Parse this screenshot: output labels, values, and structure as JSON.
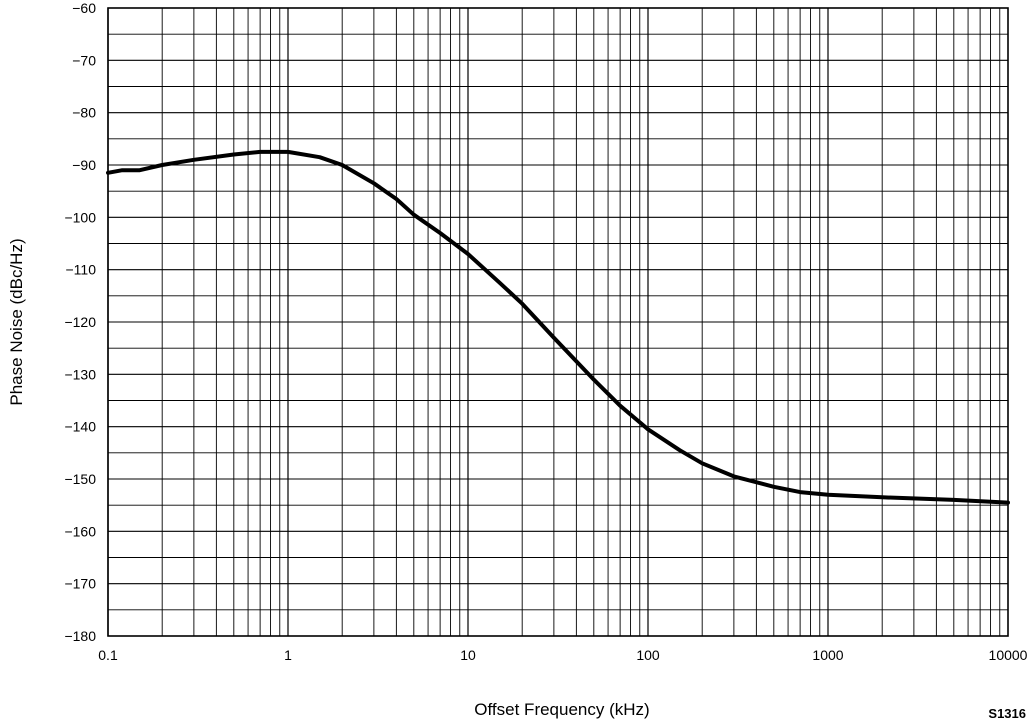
{
  "chart_data": {
    "type": "line",
    "title": "",
    "xlabel": "Offset Frequency (kHz)",
    "ylabel": "Phase Noise (dBc/Hz)",
    "x_scale": "log",
    "xlim": [
      0.1,
      10000
    ],
    "ylim": [
      -180,
      -60
    ],
    "x_ticks": [
      0.1,
      1,
      10,
      100,
      1000,
      10000
    ],
    "x_tick_labels": [
      "0.1",
      "1",
      "10",
      "100",
      "1000",
      "10000"
    ],
    "y_ticks": [
      -60,
      -70,
      -80,
      -90,
      -100,
      -110,
      -120,
      -130,
      -140,
      -150,
      -160,
      -170,
      -180
    ],
    "y_tick_labels": [
      "−60",
      "−70",
      "−80",
      "−90",
      "−100",
      "−110",
      "−120",
      "−130",
      "−140",
      "−150",
      "−160",
      "−170",
      "−180"
    ],
    "grid": true,
    "grid_minor_y_step": 5,
    "figure_id": "S1316",
    "series": [
      {
        "color": "#000000",
        "x": [
          0.1,
          0.12,
          0.15,
          0.2,
          0.3,
          0.5,
          0.7,
          1,
          1.5,
          2,
          3,
          4,
          5,
          7,
          10,
          15,
          20,
          30,
          50,
          70,
          100,
          150,
          200,
          300,
          500,
          700,
          1000,
          2000,
          5000,
          10000
        ],
        "y": [
          -91.5,
          -91.0,
          -91.0,
          -90.0,
          -89.0,
          -88.0,
          -87.5,
          -87.5,
          -88.5,
          -90.0,
          -93.5,
          -96.5,
          -99.5,
          -103.0,
          -107.0,
          -112.5,
          -116.5,
          -123.0,
          -131.0,
          -136.0,
          -140.5,
          -144.5,
          -147.0,
          -149.5,
          -151.5,
          -152.5,
          -153.0,
          -153.5,
          -154.0,
          -154.5
        ]
      }
    ]
  }
}
